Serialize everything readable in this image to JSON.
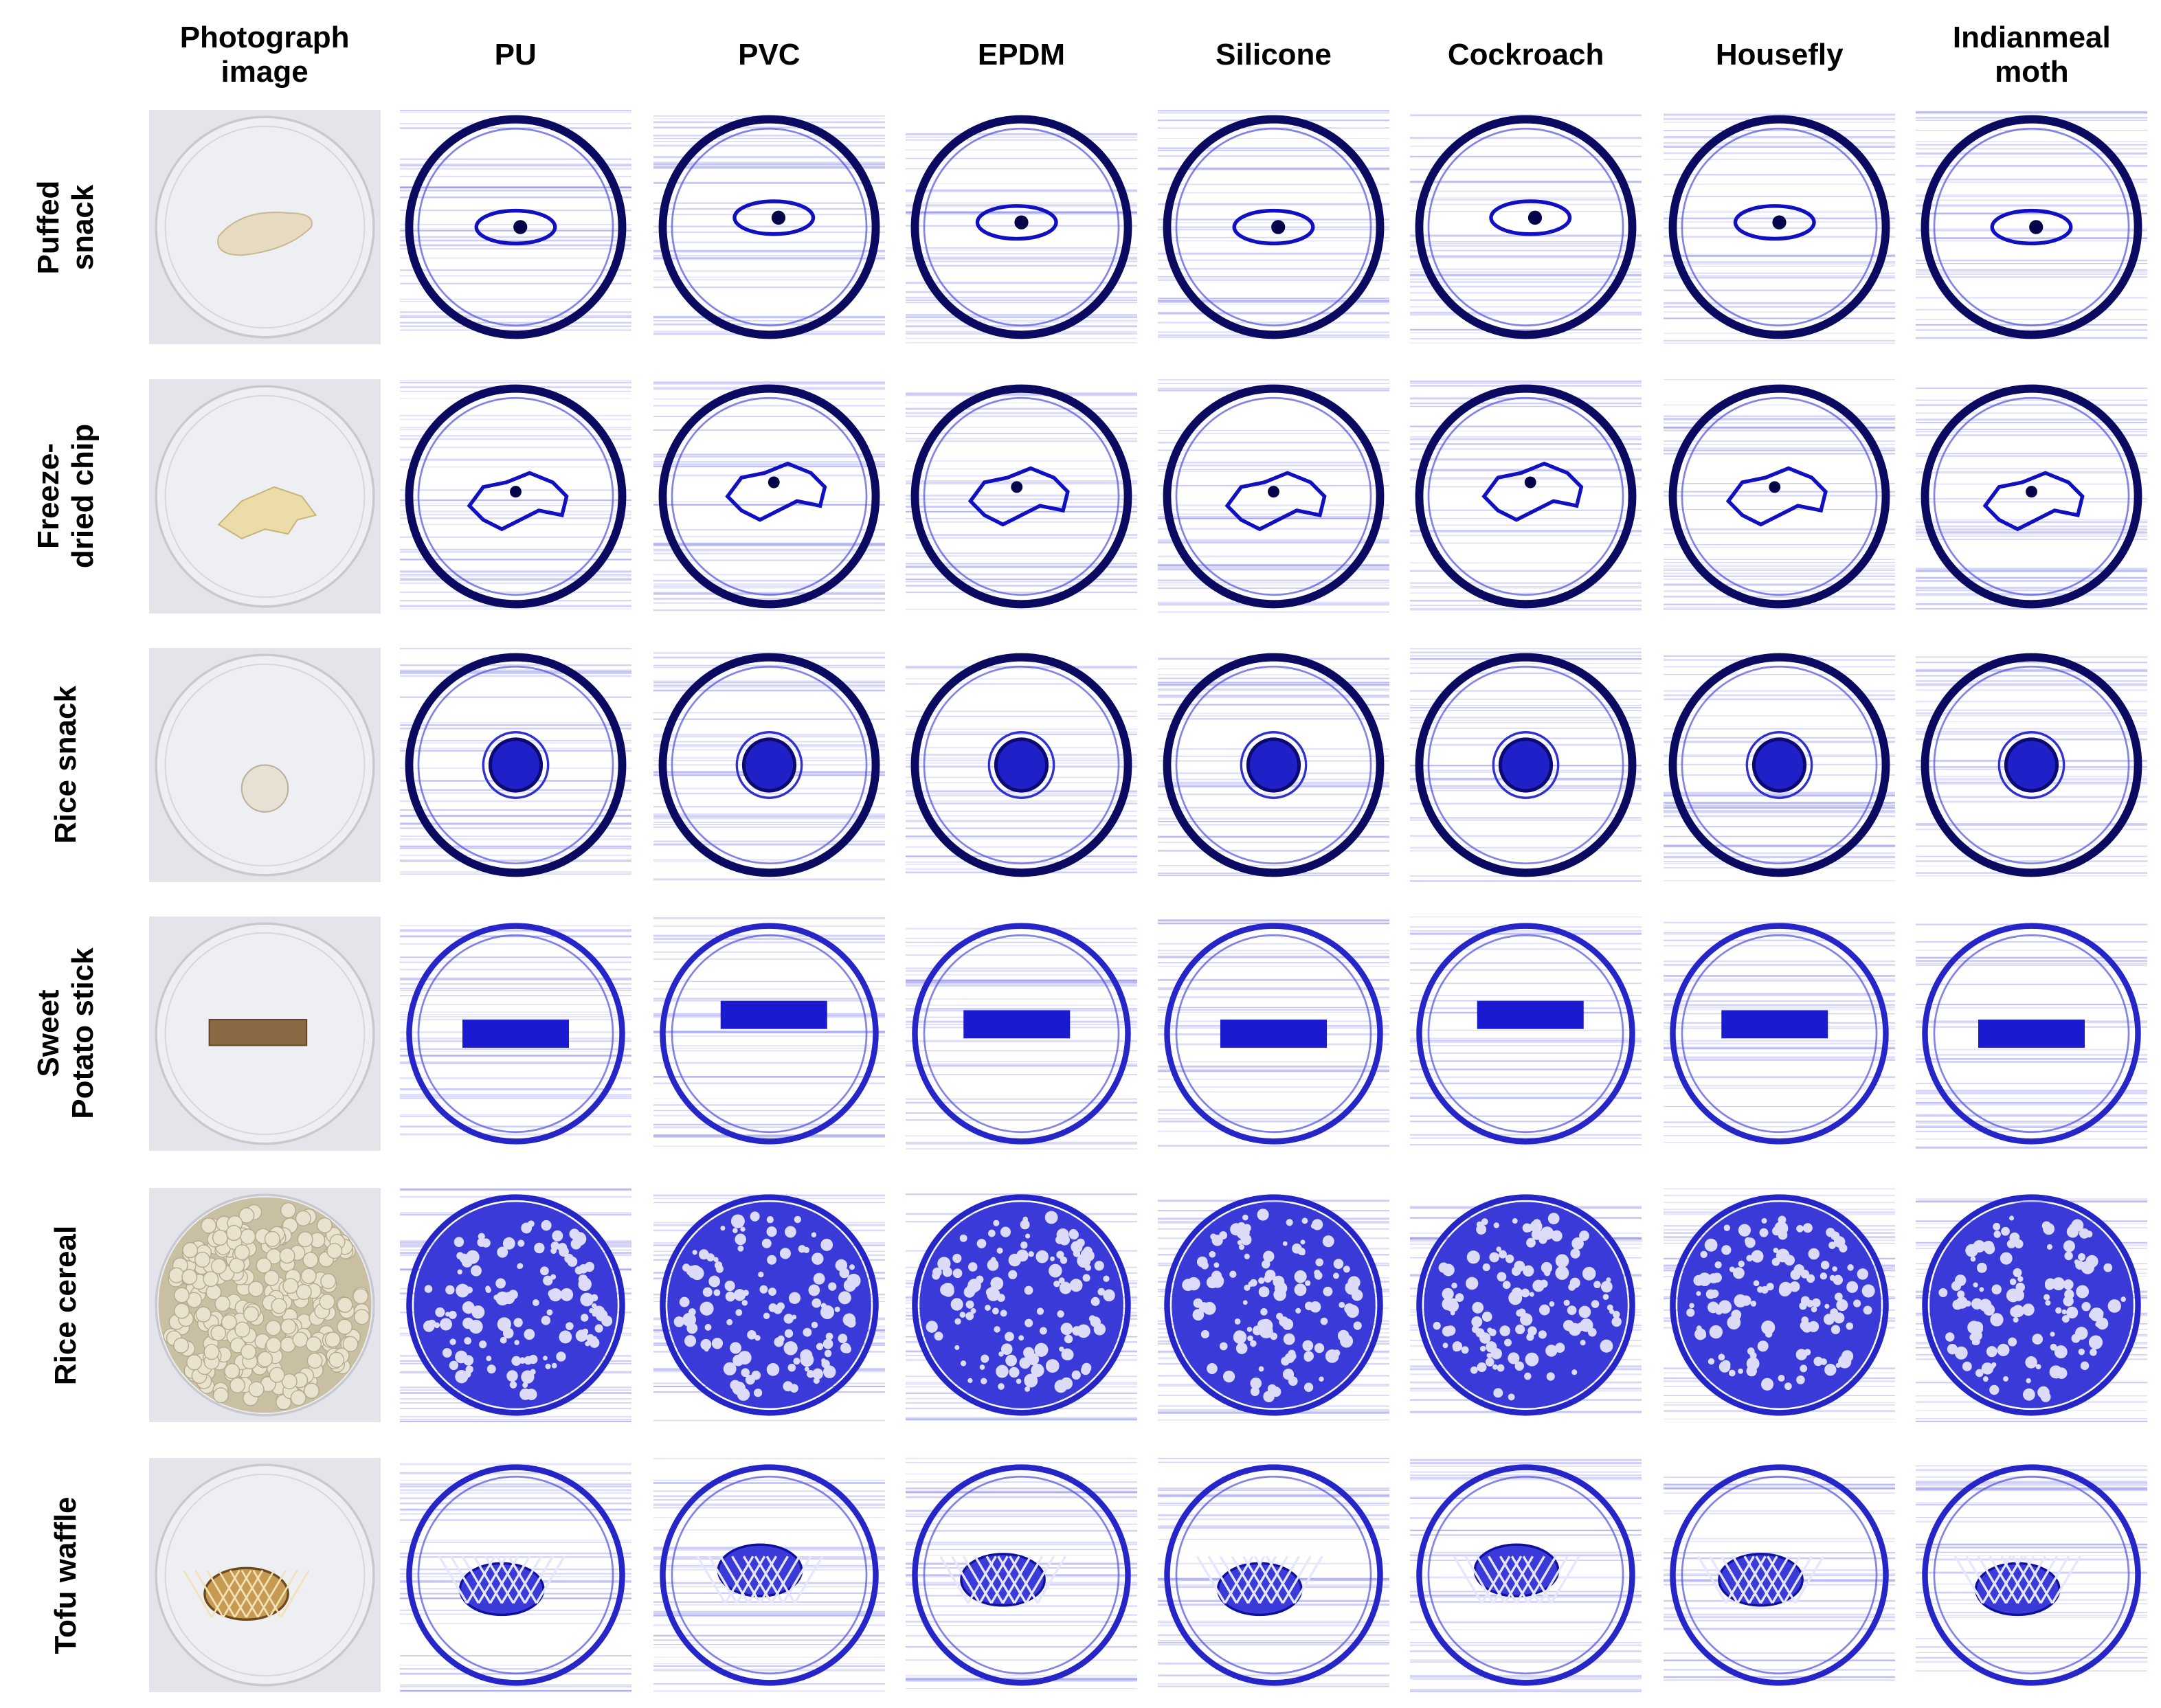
{
  "header": {
    "columns": [
      "Photograph image",
      "PU",
      "PVC",
      "EPDM",
      "Silicone",
      "Cockroach",
      "Housefly",
      "Indianmeal moth"
    ]
  },
  "rows": [
    "Puffed snack",
    "Freeze-dried chip",
    "Rice snack",
    "Sweet Potato stick",
    "Rice cereal",
    "Tofu waffle"
  ]
}
